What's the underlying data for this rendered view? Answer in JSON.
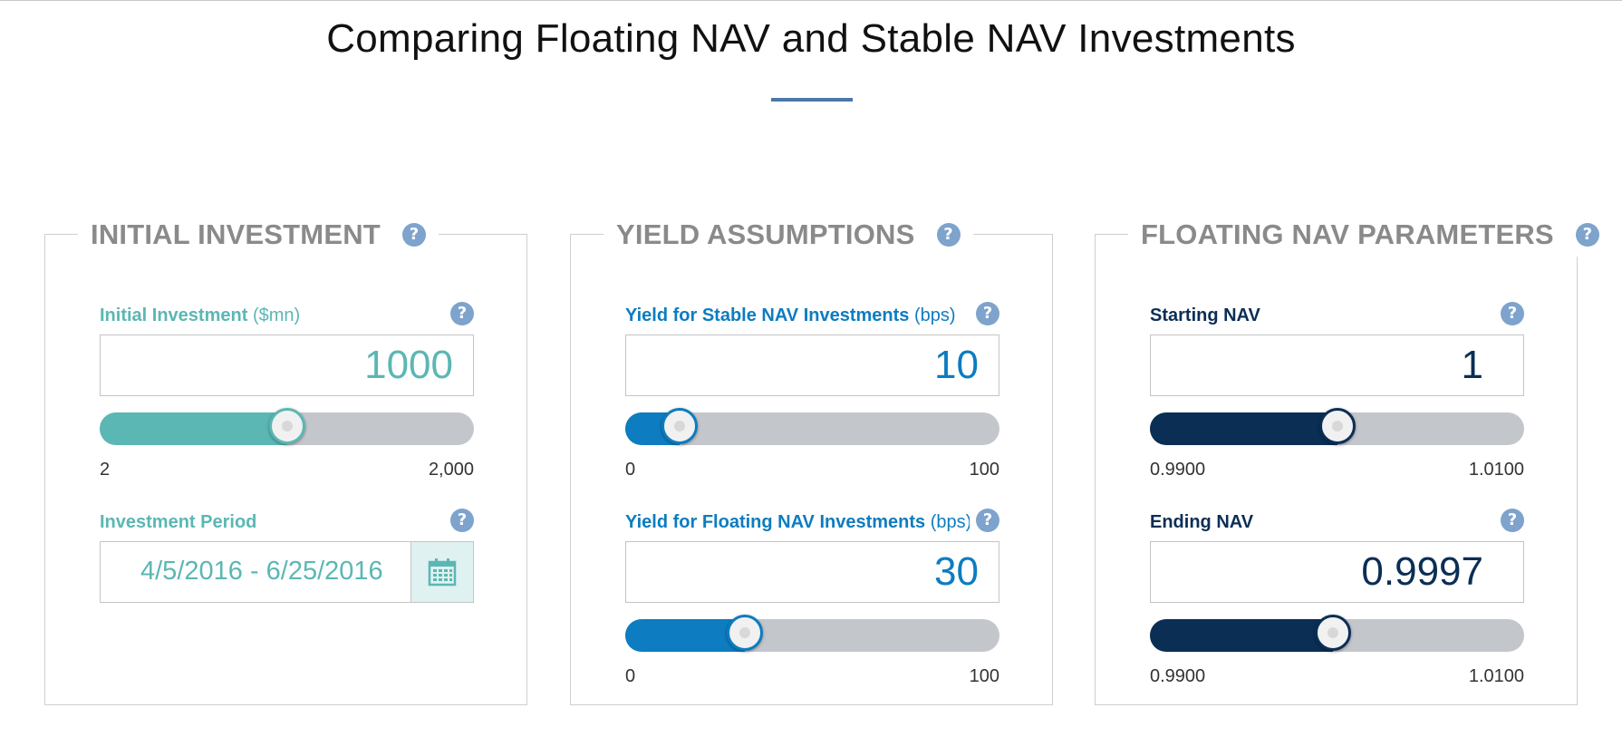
{
  "page": {
    "title": "Comparing Floating NAV and Stable NAV Investments"
  },
  "colors": {
    "teal": "#5bb7b3",
    "blue": "#0d7cc0",
    "navy": "#0b2e55",
    "track": "#c3c7cc",
    "help": "#7ea3cc"
  },
  "panels": {
    "initial": {
      "legend": "INITIAL INVESTMENT",
      "help": "?",
      "investment": {
        "label": "Initial Investment",
        "unit": "($mn)",
        "help": "?",
        "value": "1000",
        "min_label": "2",
        "max_label": "2,000",
        "fraction": 0.5
      },
      "period": {
        "label": "Investment Period",
        "help": "?",
        "value": "4/5/2016 - 6/25/2016",
        "calendar_icon": "calendar-icon"
      }
    },
    "yield": {
      "legend": "YIELD ASSUMPTIONS",
      "help": "?",
      "stable": {
        "label": "Yield for Stable NAV Investments",
        "unit": "(bps)",
        "help": "?",
        "value": "10",
        "min_label": "0",
        "max_label": "100",
        "fraction": 0.145
      },
      "floating": {
        "label": "Yield for Floating NAV Investments",
        "unit": "(bps)",
        "help": "?",
        "value": "30",
        "min_label": "0",
        "max_label": "100",
        "fraction": 0.32
      }
    },
    "floating_nav": {
      "legend": "FLOATING NAV PARAMETERS",
      "help": "?",
      "starting": {
        "label": "Starting NAV",
        "help": "?",
        "value": "1",
        "min_label": "0.9900",
        "max_label": "1.0100",
        "fraction": 0.5
      },
      "ending": {
        "label": "Ending NAV",
        "help": "?",
        "value": "0.9997",
        "min_label": "0.9900",
        "max_label": "1.0100",
        "fraction": 0.49
      }
    }
  }
}
